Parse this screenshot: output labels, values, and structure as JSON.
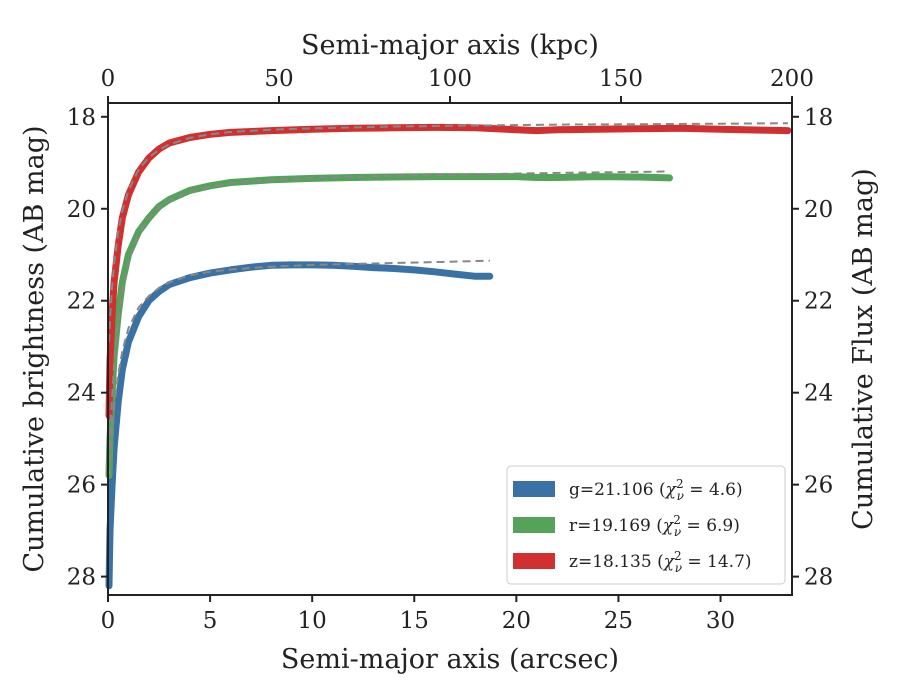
{
  "chart_data": {
    "type": "line",
    "xlabel": "Semi-major axis (arcsec)",
    "xlabel_top": "Semi-major axis (kpc)",
    "ylabel": "Cumulative brightness (AB mag)",
    "ylabel_right": "Cumulative Flux (AB mag)",
    "xlim": [
      0,
      33.5
    ],
    "xlim_top": [
      0,
      200
    ],
    "ylim": [
      28.4,
      17.7
    ],
    "y_inverted": true,
    "grid": false,
    "legend_position": "lower-right",
    "xticks": [
      0,
      5,
      10,
      15,
      20,
      25,
      30
    ],
    "xticks_top": [
      0,
      50,
      100,
      150,
      200
    ],
    "yticks": [
      18,
      20,
      22,
      24,
      26,
      28
    ],
    "yticks_right": [
      18,
      20,
      22,
      24,
      26,
      28
    ],
    "series": [
      {
        "name": "g=21.106 (χ²ν = 4.6)",
        "color": "#3a72a6",
        "x": [
          0.05,
          0.1,
          0.2,
          0.3,
          0.5,
          0.7,
          1.0,
          1.5,
          2.0,
          2.5,
          3.0,
          4.0,
          5.0,
          6.0,
          7.0,
          8.0,
          9.0,
          10.0,
          11.0,
          12.0,
          13.0,
          14.0,
          15.0,
          16.0,
          17.0,
          18.0,
          18.7
        ],
        "y": [
          28.2,
          27.0,
          26.0,
          25.2,
          24.2,
          23.5,
          22.9,
          22.35,
          22.0,
          21.8,
          21.65,
          21.5,
          21.4,
          21.33,
          21.27,
          21.23,
          21.22,
          21.22,
          21.23,
          21.25,
          21.28,
          21.3,
          21.33,
          21.37,
          21.42,
          21.47,
          21.47
        ]
      },
      {
        "name": "r=19.169 (χ²ν = 6.9)",
        "color": "#55a35a",
        "x": [
          0.05,
          0.1,
          0.2,
          0.3,
          0.5,
          0.7,
          1.0,
          1.5,
          2.0,
          2.5,
          3.0,
          4.0,
          5.0,
          6.0,
          8.0,
          10.0,
          12.0,
          14.0,
          16.0,
          18.0,
          20.0,
          21.0,
          22.0,
          24.0,
          26.0,
          27.5
        ],
        "y": [
          25.8,
          25.0,
          24.0,
          23.2,
          22.3,
          21.6,
          21.0,
          20.5,
          20.2,
          19.95,
          19.8,
          19.6,
          19.5,
          19.43,
          19.37,
          19.34,
          19.32,
          19.31,
          19.3,
          19.3,
          19.3,
          19.32,
          19.32,
          19.3,
          19.31,
          19.33
        ]
      },
      {
        "name": "z=18.135 (χ²ν = 14.7)",
        "color": "#d03030",
        "x": [
          0.05,
          0.1,
          0.2,
          0.3,
          0.5,
          0.7,
          1.0,
          1.5,
          2.0,
          2.5,
          3.0,
          4.0,
          5.0,
          6.0,
          8.0,
          10.0,
          12.0,
          14.0,
          16.0,
          18.0,
          20.0,
          21.0,
          22.0,
          24.0,
          26.0,
          28.0,
          30.0,
          32.0,
          33.3
        ],
        "y": [
          24.5,
          23.3,
          22.3,
          21.6,
          20.8,
          20.2,
          19.7,
          19.2,
          18.9,
          18.7,
          18.57,
          18.45,
          18.38,
          18.34,
          18.3,
          18.27,
          18.25,
          18.24,
          18.23,
          18.24,
          18.28,
          18.3,
          18.28,
          18.27,
          18.26,
          18.25,
          18.27,
          18.29,
          18.3
        ]
      }
    ],
    "fits": [
      {
        "x": [
          0.05,
          0.1,
          0.2,
          0.3,
          0.5,
          0.7,
          1.0,
          1.5,
          2.0,
          2.5,
          3.0,
          4.0,
          5.0,
          6.0,
          8.0,
          10.0,
          12.0,
          14.0,
          16.0,
          18.7
        ],
        "y": [
          25.8,
          25.4,
          24.8,
          24.3,
          23.6,
          23.1,
          22.6,
          22.15,
          21.9,
          21.72,
          21.6,
          21.45,
          21.37,
          21.32,
          21.26,
          21.22,
          21.2,
          21.18,
          21.16,
          21.13
        ]
      },
      {
        "x": [
          0.05,
          0.1,
          0.2,
          0.3,
          0.5,
          0.7,
          1.0,
          1.5,
          2.0,
          2.5,
          3.0,
          4.0,
          5.0,
          6.0,
          8.0,
          10.0,
          14.0,
          18.0,
          22.0,
          27.5
        ],
        "y": [
          25.5,
          24.9,
          24.1,
          23.4,
          22.5,
          21.8,
          21.15,
          20.55,
          20.2,
          19.97,
          19.82,
          19.63,
          19.52,
          19.45,
          19.37,
          19.33,
          19.28,
          19.25,
          19.22,
          19.19
        ]
      },
      {
        "x": [
          0.05,
          0.1,
          0.2,
          0.3,
          0.5,
          0.7,
          1.0,
          1.5,
          2.0,
          2.5,
          3.0,
          4.0,
          5.0,
          6.0,
          8.0,
          10.0,
          14.0,
          18.0,
          22.0,
          26.0,
          30.0,
          33.3
        ],
        "y": [
          22.9,
          22.4,
          21.7,
          21.2,
          20.5,
          20.05,
          19.6,
          19.15,
          18.88,
          18.72,
          18.6,
          18.46,
          18.38,
          18.33,
          18.28,
          18.25,
          18.21,
          18.19,
          18.17,
          18.16,
          18.15,
          18.14
        ]
      }
    ],
    "fit_style": {
      "color": "#888888",
      "dash": "8,5"
    },
    "legend": [
      {
        "prefix": "g=21.106 (",
        "sym": "χ",
        "sup": "2",
        "sub": "ν",
        "suffix": " = 4.6)",
        "color": "#3a72a6"
      },
      {
        "prefix": "r=19.169 (",
        "sym": "χ",
        "sup": "2",
        "sub": "ν",
        "suffix": " = 6.9)",
        "color": "#55a35a"
      },
      {
        "prefix": "z=18.135 (",
        "sym": "χ",
        "sup": "2",
        "sub": "ν",
        "suffix": " = 14.7)",
        "color": "#d03030"
      }
    ]
  }
}
